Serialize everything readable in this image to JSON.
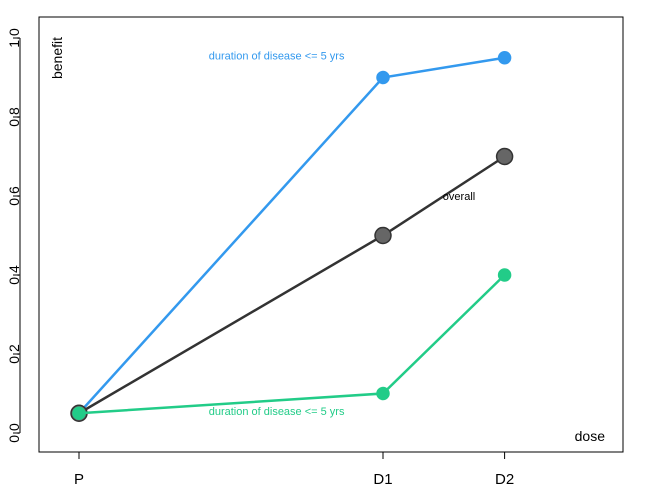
{
  "chart_data": {
    "type": "line",
    "categories": [
      "P",
      "D1",
      "D2"
    ],
    "x": [
      0,
      1,
      1.4
    ],
    "ylim": [
      0,
      1
    ],
    "yticks": [
      "0.0",
      "0.2",
      "0.4",
      "0.6",
      "0.8",
      "1.0"
    ],
    "ytick_values": [
      0,
      0.2,
      0.4,
      0.6,
      0.8,
      1.0
    ],
    "ylabel": "benefit",
    "xlabel": "dose",
    "grid": false,
    "series": [
      {
        "key": "high",
        "values": [
          0.05,
          0.9,
          0.95
        ],
        "color": "#3399ee",
        "marker": "small"
      },
      {
        "key": "overall",
        "values": [
          0.05,
          0.5,
          0.7
        ],
        "color": "#333333",
        "marker": "large"
      },
      {
        "key": "low",
        "values": [
          0.05,
          0.1,
          0.4
        ],
        "color": "#22cc88",
        "marker": "small"
      }
    ],
    "annotations": [
      {
        "text": "duration of disease <= 5 yrs",
        "series": "high",
        "x": 0.65,
        "y": 0.945,
        "color": "#3399ee"
      },
      {
        "text": "overall",
        "series": "overall",
        "x": 1.25,
        "y": 0.59,
        "color": "#000000"
      },
      {
        "text": "duration of disease <= 5 yrs",
        "series": "low",
        "x": 0.65,
        "y": 0.045,
        "color": "#22cc88"
      }
    ]
  }
}
